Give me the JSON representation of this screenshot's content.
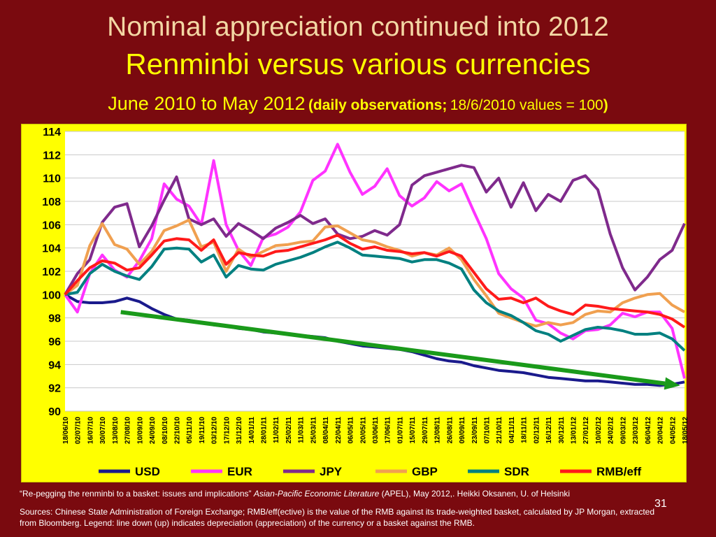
{
  "slide": {
    "title_line1": "Nominal appreciation continued into 2012",
    "title_line2": "Renminbi versus various currencies",
    "subtitle_main": "June 2010 to May 2012",
    "subtitle_obs": "(daily observations;",
    "subtitle_base": "18/6/2010 values = 100",
    "subtitle_close": ")",
    "footnote_quote": "“Re-pegging the renminbi to a basket: issues and implications”",
    "footnote_journal": "Asian-Pacific Economic Literature",
    "footnote_rest": "(APEL), May 2012,.  Heikki Oksanen, U. of Helsinki",
    "page_number": "31",
    "sources": "Sources: Chinese State Administration of Foreign Exchange; RMB/eff(ective) is the value of the RMB against its trade-weighted basket, calculated by JP Morgan, extracted from Bloomberg.  Legend: line down (up) indicates depreciation (appreciation) of the currency or a basket against the RMB."
  },
  "chart_data": {
    "type": "line",
    "title": "",
    "xlabel": "",
    "ylabel": "",
    "ylim": [
      90,
      114
    ],
    "yticks": [
      90,
      92,
      94,
      96,
      98,
      100,
      102,
      104,
      106,
      108,
      110,
      112,
      114
    ],
    "grid": "horizontal",
    "legend_position": "bottom",
    "x": [
      "18/06/10",
      "02/07/10",
      "16/07/10",
      "30/07/10",
      "13/08/10",
      "27/08/10",
      "10/09/10",
      "24/09/10",
      "08/10/10",
      "22/10/10",
      "05/11/10",
      "19/11/10",
      "03/12/10",
      "17/12/10",
      "31/12/10",
      "14/01/11",
      "28/01/11",
      "11/02/11",
      "25/02/11",
      "11/03/11",
      "25/03/11",
      "08/04/11",
      "22/04/11",
      "06/05/11",
      "20/05/11",
      "03/06/11",
      "17/06/11",
      "01/07/11",
      "15/07/11",
      "29/07/11",
      "12/08/11",
      "26/08/11",
      "09/09/11",
      "23/09/11",
      "07/10/11",
      "21/10/11",
      "04/11/11",
      "18/11/11",
      "02/12/11",
      "16/12/11",
      "30/12/11",
      "13/01/12",
      "27/01/12",
      "10/02/12",
      "24/02/12",
      "09/03/12",
      "23/03/12",
      "06/04/12",
      "20/04/12",
      "04/05/12",
      "18/05/12"
    ],
    "series": [
      {
        "name": "USD",
        "color": "#1a1a8c",
        "values": [
          100,
          99.4,
          99.3,
          99.3,
          99.4,
          99.7,
          99.4,
          98.8,
          98.3,
          97.9,
          97.8,
          97.6,
          97.4,
          97.3,
          97.1,
          97.0,
          96.8,
          96.7,
          96.6,
          96.5,
          96.4,
          96.3,
          96.0,
          95.8,
          95.6,
          95.5,
          95.4,
          95.3,
          95.1,
          94.8,
          94.5,
          94.3,
          94.2,
          93.9,
          93.7,
          93.5,
          93.4,
          93.3,
          93.1,
          92.9,
          92.8,
          92.7,
          92.6,
          92.6,
          92.5,
          92.4,
          92.3,
          92.3,
          92.2,
          92.3,
          92.5
        ]
      },
      {
        "name": "EUR",
        "color": "#ff33ff",
        "values": [
          100,
          98.5,
          101.8,
          103.4,
          102.1,
          101.5,
          102.9,
          104.8,
          109.5,
          108.2,
          107.6,
          106.0,
          111.5,
          106.0,
          103.8,
          102.5,
          104.9,
          105.2,
          105.8,
          107.1,
          109.8,
          110.6,
          112.9,
          110.5,
          108.6,
          109.3,
          110.8,
          108.5,
          107.6,
          108.3,
          109.7,
          108.9,
          109.5,
          107.1,
          104.8,
          101.8,
          100.5,
          99.7,
          97.8,
          97.5,
          96.7,
          96.2,
          96.9,
          97.0,
          97.4,
          98.4,
          98.1,
          98.5,
          98.5,
          97.1,
          92.8
        ]
      },
      {
        "name": "JPY",
        "color": "#7f2a8c",
        "values": [
          100,
          101.8,
          103.0,
          106.2,
          107.5,
          107.8,
          104.1,
          105.9,
          108.1,
          110.1,
          106.5,
          106.0,
          106.5,
          105.0,
          106.1,
          105.5,
          104.8,
          105.7,
          106.2,
          106.8,
          106.1,
          106.5,
          105.2,
          104.8,
          105.0,
          105.5,
          105.1,
          106.0,
          109.4,
          110.2,
          110.5,
          110.8,
          111.1,
          110.9,
          108.8,
          110.0,
          107.5,
          109.6,
          107.2,
          108.6,
          108.0,
          109.8,
          110.2,
          109.0,
          105.2,
          102.3,
          100.4,
          101.5,
          103.0,
          103.8,
          106.1
        ]
      },
      {
        "name": "GBP",
        "color": "#f0a050",
        "values": [
          100,
          100.8,
          104.2,
          106.1,
          104.3,
          103.9,
          102.6,
          103.7,
          105.5,
          105.9,
          106.4,
          104.1,
          104.5,
          102.0,
          103.9,
          103.2,
          103.7,
          104.2,
          104.3,
          104.5,
          104.6,
          105.8,
          105.9,
          105.3,
          104.7,
          104.5,
          104.1,
          103.8,
          103.3,
          103.6,
          103.4,
          104.0,
          103.0,
          101.3,
          99.9,
          98.4,
          98.0,
          97.6,
          97.3,
          97.6,
          97.4,
          97.6,
          98.3,
          98.6,
          98.5,
          99.3,
          99.7,
          100.0,
          100.1,
          99.1,
          98.5
        ]
      },
      {
        "name": "SDR",
        "color": "#008080",
        "values": [
          100,
          100.2,
          101.8,
          102.6,
          102.0,
          101.6,
          101.3,
          102.4,
          103.9,
          104.0,
          103.9,
          102.8,
          103.4,
          101.5,
          102.5,
          102.2,
          102.1,
          102.6,
          102.9,
          103.2,
          103.6,
          104.1,
          104.5,
          104.0,
          103.4,
          103.3,
          103.2,
          103.1,
          102.8,
          103.0,
          103.0,
          102.7,
          102.2,
          100.4,
          99.3,
          98.6,
          98.2,
          97.6,
          96.9,
          96.6,
          96.0,
          96.5,
          97.0,
          97.2,
          97.1,
          96.9,
          96.6,
          96.6,
          96.7,
          96.2,
          95.2
        ]
      },
      {
        "name": "RMB/eff",
        "color": "#ff1a1a",
        "values": [
          100,
          101.2,
          102.3,
          102.9,
          102.7,
          102.1,
          102.3,
          103.4,
          104.6,
          104.8,
          104.7,
          103.8,
          104.7,
          102.6,
          103.6,
          103.4,
          103.3,
          103.7,
          103.8,
          104.1,
          104.4,
          104.7,
          105.1,
          104.4,
          103.9,
          104.1,
          103.8,
          103.7,
          103.5,
          103.6,
          103.3,
          103.7,
          103.3,
          101.9,
          100.5,
          99.6,
          99.7,
          99.3,
          99.7,
          99.0,
          98.6,
          98.3,
          99.1,
          99.0,
          98.8,
          98.7,
          98.6,
          98.5,
          98.3,
          97.9,
          97.2
        ]
      }
    ],
    "annotation": {
      "type": "trend-arrow",
      "color": "#1a9a1a",
      "from": {
        "x": "20/08/10",
        "y": 98.5
      },
      "to": {
        "x": "13/05/12",
        "y": 92.2
      }
    }
  }
}
